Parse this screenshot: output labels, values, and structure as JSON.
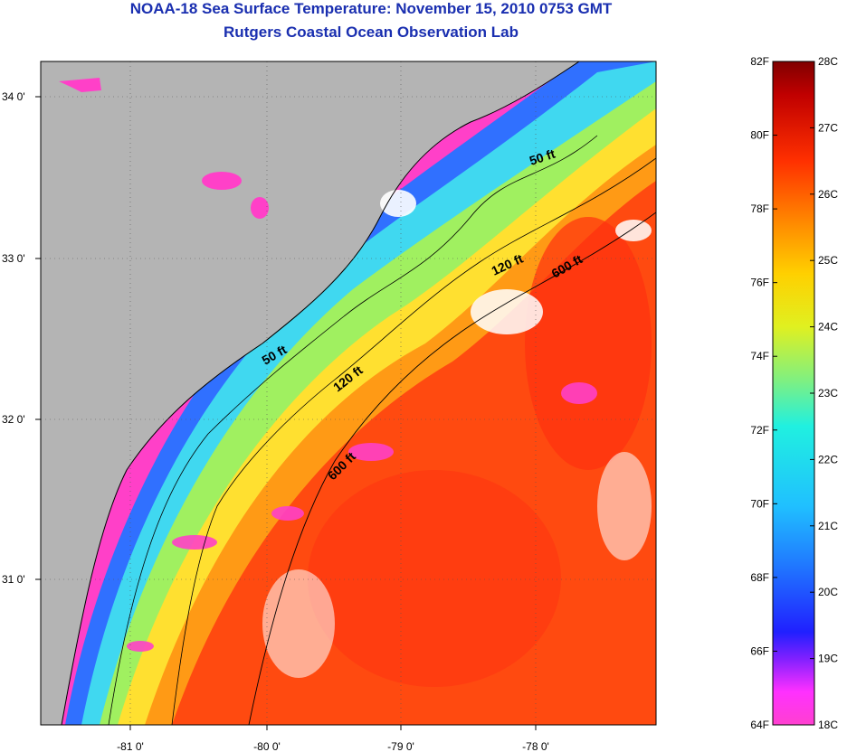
{
  "header": {
    "title": "NOAA-18 Sea Surface Temperature:  November 15, 2010 0753 GMT",
    "subtitle": "Rutgers Coastal Ocean Observation Lab"
  },
  "map": {
    "lon_labels": [
      "-81 0'",
      "-80 0'",
      "-79 0'",
      "-78 0'"
    ],
    "lat_labels": [
      "34 0'",
      "33 0'",
      "32 0'",
      "31 0'"
    ],
    "contour_labels": [
      "50 ft",
      "120 ft",
      "600 ft",
      "50 ft",
      "120 ft",
      "600 ft"
    ],
    "land_color": "#b4b4b4"
  },
  "colorbar": {
    "fahrenheit_labels": [
      "82F",
      "80F",
      "78F",
      "76F",
      "74F",
      "72F",
      "70F",
      "68F",
      "66F",
      "64F"
    ],
    "celsius_labels": [
      "28C",
      "27C",
      "26C",
      "25C",
      "24C",
      "23C",
      "22C",
      "21C",
      "20C",
      "19C",
      "18C"
    ],
    "range_f": [
      64,
      82
    ],
    "range_c": [
      18,
      28
    ]
  }
}
